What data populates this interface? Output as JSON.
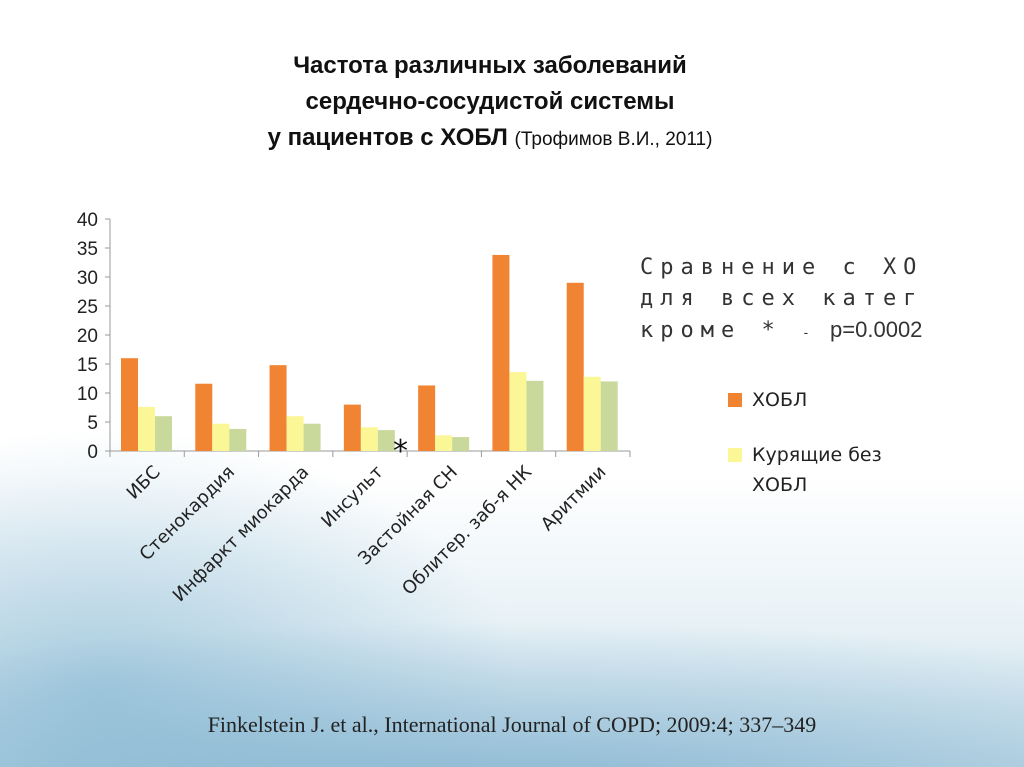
{
  "title": {
    "line1": "Частота различных заболеваний",
    "line2": "сердечно-сосудистой системы",
    "line3": "у пациентов с ХОБЛ",
    "citation": "(Трофимов В.И., 2011)"
  },
  "note": {
    "line1": "Сравнение с ХО",
    "line2": "для всех катег",
    "line3_start": "кроме *",
    "line3_dash": "-",
    "line3_p": "p=0.0002"
  },
  "star_mark": "*",
  "legend": [
    {
      "label_line1": "ХОБЛ",
      "label_line2": "",
      "color": "#f08432"
    },
    {
      "label_line1": "Курящие без",
      "label_line2": "ХОБЛ",
      "color": "#fbf796"
    }
  ],
  "source": "Finkelstein J. et al., International Journal of COPD; 2009:4; 337–349",
  "chart_data": {
    "type": "bar",
    "categories": [
      "ИБС",
      "Стенокардия",
      "Инфаркт миокарда",
      "Инсульт",
      "Застойная СН",
      "Облитер. заб-я НК",
      "Аритмии"
    ],
    "series": [
      {
        "name": "ХОБЛ",
        "values": [
          16,
          11.6,
          14.8,
          8,
          11.3,
          33.8,
          29
        ],
        "color": "#f08432"
      },
      {
        "name": "Курящие без ХОБЛ",
        "values": [
          7.6,
          4.7,
          6,
          4.1,
          2.7,
          13.6,
          12.8
        ],
        "color": "#fbf796"
      },
      {
        "values": [
          6,
          3.8,
          4.7,
          3.6,
          2.4,
          12.1,
          12
        ],
        "color": "#c9d89b"
      }
    ],
    "yticks": [
      0,
      5,
      10,
      15,
      20,
      25,
      30,
      35,
      40
    ],
    "ylim": [
      0,
      40
    ],
    "grid": false,
    "legend_position": "right"
  }
}
